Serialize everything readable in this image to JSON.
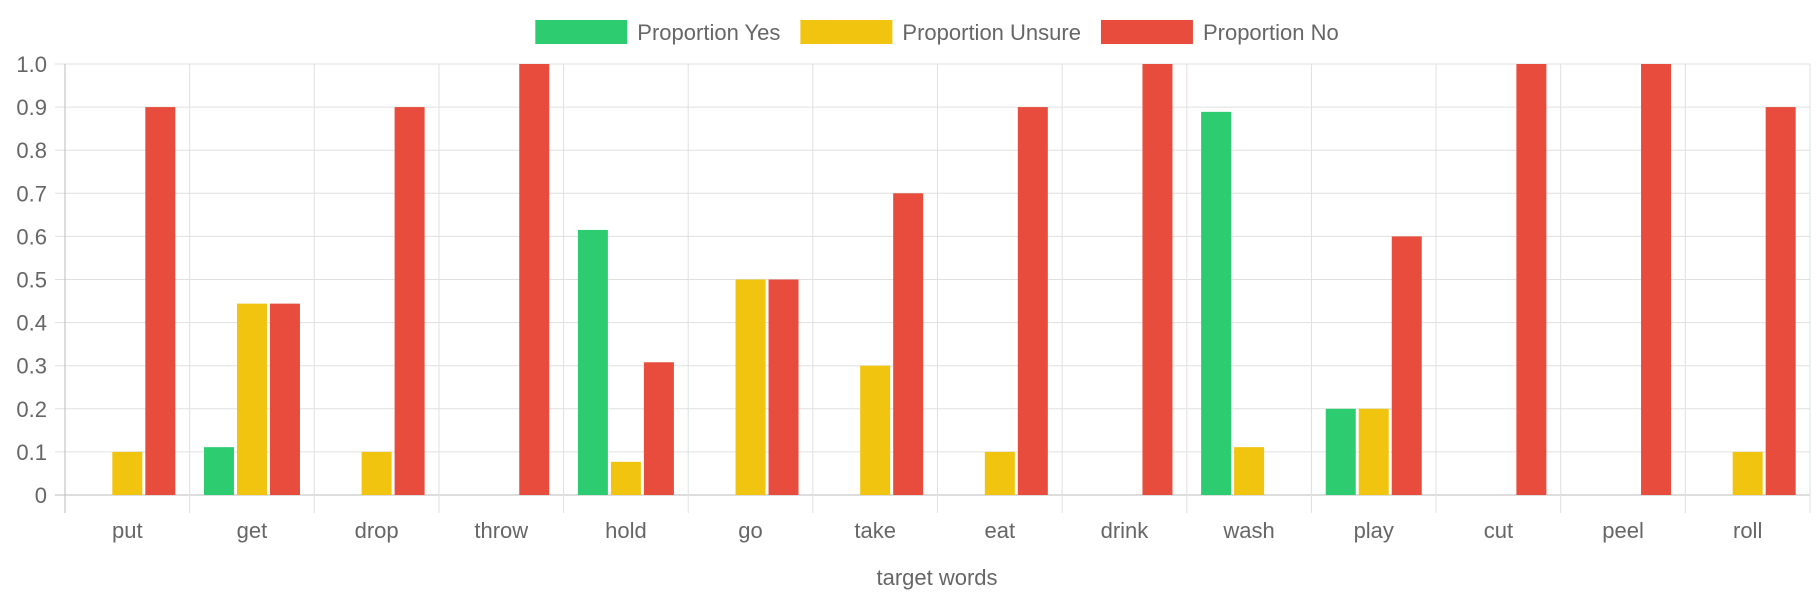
{
  "chart_data": {
    "type": "bar",
    "categories": [
      "put",
      "get",
      "drop",
      "throw",
      "hold",
      "go",
      "take",
      "eat",
      "drink",
      "wash",
      "play",
      "cut",
      "peel",
      "roll"
    ],
    "series": [
      {
        "name": "Proportion Yes",
        "color": "#2ecc71",
        "values": [
          0,
          0.111,
          0,
          0,
          0.615,
          0,
          0,
          0,
          0,
          0.889,
          0.2,
          0,
          0,
          0
        ]
      },
      {
        "name": "Proportion Unsure",
        "color": "#f1c40f",
        "values": [
          0.1,
          0.444,
          0.1,
          0,
          0.077,
          0.5,
          0.3,
          0.1,
          0,
          0.111,
          0.2,
          0,
          0,
          0.1
        ]
      },
      {
        "name": "Proportion No",
        "color": "#e74c3c",
        "values": [
          0.9,
          0.444,
          0.9,
          1.0,
          0.308,
          0.5,
          0.7,
          0.9,
          1.0,
          0,
          0.6,
          1.0,
          1.0,
          0.9
        ]
      }
    ],
    "title": "",
    "xlabel": "target words",
    "ylabel": "",
    "ylim": [
      0,
      1.0
    ],
    "yticks": [
      "0",
      "0.1",
      "0.2",
      "0.3",
      "0.4",
      "0.5",
      "0.6",
      "0.7",
      "0.8",
      "0.9",
      "1.0"
    ],
    "grid": true,
    "legend_position": "top"
  }
}
